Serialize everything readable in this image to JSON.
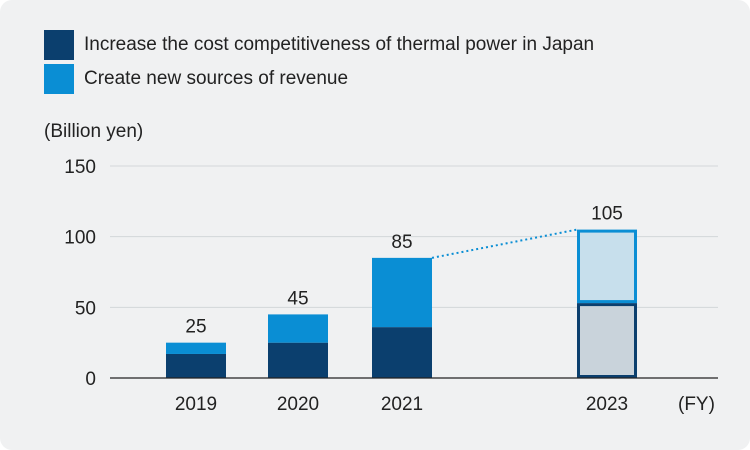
{
  "chart_data": {
    "type": "bar",
    "stacked": true,
    "categories": [
      "2019",
      "2020",
      "2021",
      "2023"
    ],
    "series": [
      {
        "name": "Increase the cost competitiveness of thermal power in Japan",
        "values": [
          17,
          25,
          36,
          53
        ],
        "color": "#0b3f6e",
        "projected_color": "#c9d3db"
      },
      {
        "name": "Create new sources of revenue",
        "values": [
          8,
          20,
          49,
          52
        ],
        "color": "#0a8ed4",
        "projected_color": "#c7dfec"
      }
    ],
    "totals": [
      "25",
      "45",
      "85",
      "105"
    ],
    "projected": [
      false,
      false,
      false,
      true
    ],
    "ylabel": "(Billion yen)",
    "xlabel": "(FY)",
    "ylim": [
      0,
      150
    ],
    "yticks": [
      "0",
      "50",
      "100",
      "150"
    ],
    "grid": true,
    "legend": "top-left"
  }
}
